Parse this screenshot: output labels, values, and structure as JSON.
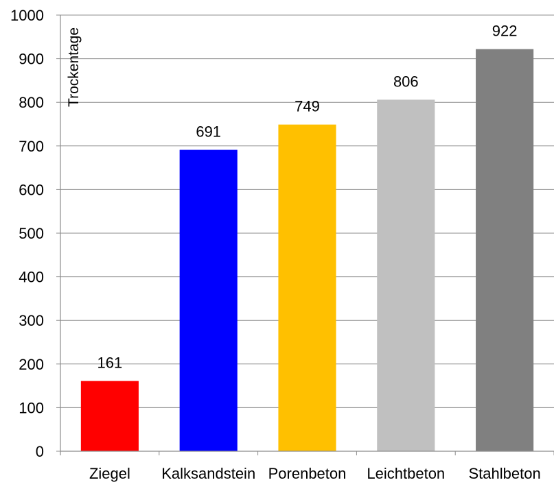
{
  "chart_data": {
    "type": "bar",
    "title": "",
    "xlabel": "",
    "ylabel": "Trockentage",
    "ylim": [
      0,
      1000
    ],
    "yticks": [
      0,
      100,
      200,
      300,
      400,
      500,
      600,
      700,
      800,
      900,
      1000
    ],
    "grid": true,
    "categories": [
      "Ziegel",
      "Kalksandstein",
      "Porenbeton",
      "Leichtbeton",
      "Stahlbeton"
    ],
    "values": [
      161,
      691,
      749,
      806,
      922
    ],
    "data_labels": [
      "161",
      "691",
      "749",
      "806",
      "922"
    ],
    "colors": [
      "#ff0000",
      "#0000ff",
      "#ffc000",
      "#c0c0c0",
      "#808080"
    ]
  }
}
